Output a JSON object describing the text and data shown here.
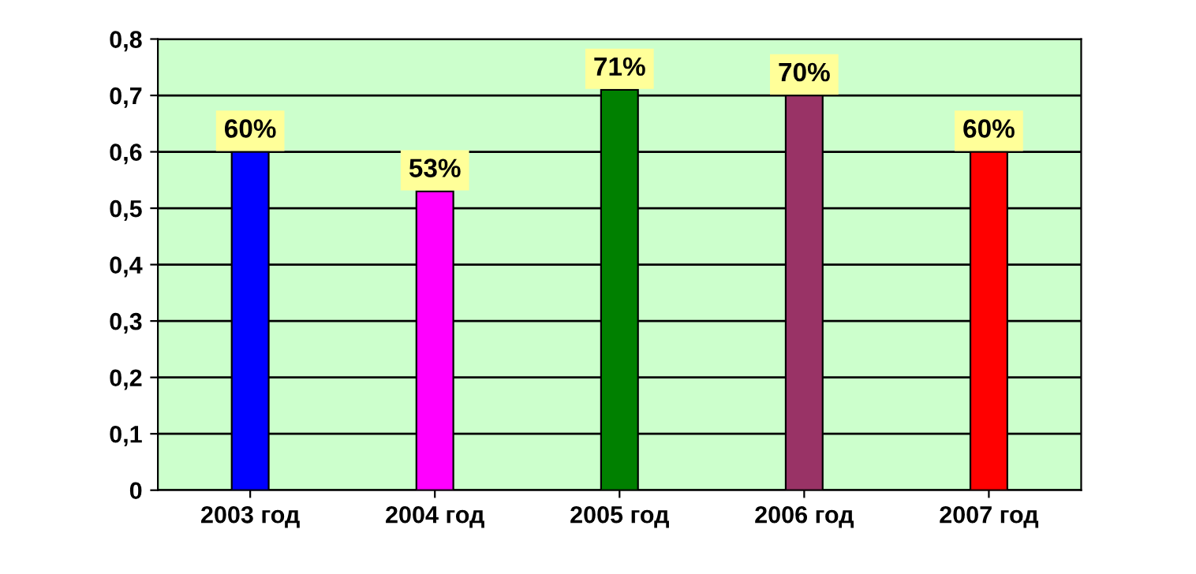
{
  "chart_data": {
    "type": "bar",
    "categories": [
      "2003 год",
      "2004 год",
      "2005 год",
      "2006 год",
      "2007 год"
    ],
    "values": [
      0.6,
      0.53,
      0.71,
      0.7,
      0.6
    ],
    "colors": [
      "#0000ff",
      "#ff00ff",
      "#008000",
      "#993366",
      "#ff0000"
    ],
    "value_labels": [
      "60%",
      "53%",
      "71%",
      "70%",
      "60%"
    ],
    "ylim": [
      0,
      0.8
    ],
    "yticks": [
      0,
      {
        "value": 0.1,
        "label": "0,1"
      },
      {
        "value": 0.2,
        "label": "0,2"
      },
      {
        "value": 0.3,
        "label": "0,3"
      },
      {
        "value": 0.4,
        "label": "0,4"
      },
      {
        "value": 0.5,
        "label": "0,5"
      },
      {
        "value": 0.6,
        "label": "0,6"
      },
      {
        "value": 0.7,
        "label": "0,7"
      },
      {
        "value": 0.8,
        "label": "0,8"
      }
    ],
    "grid": "y",
    "legend": false
  }
}
